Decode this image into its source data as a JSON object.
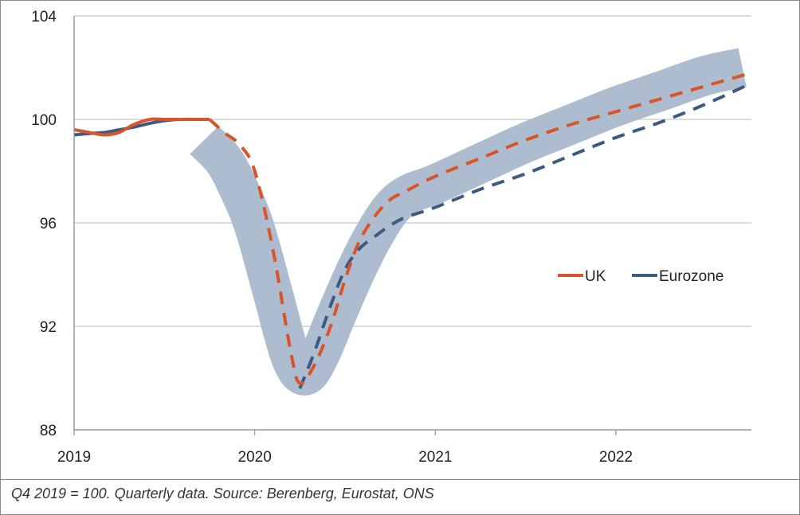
{
  "chart_data": {
    "type": "line",
    "x_ticks": [
      "2019",
      "2020",
      "2021",
      "2022"
    ],
    "y_ticks": [
      88,
      92,
      96,
      100,
      104
    ],
    "ylim": [
      88,
      104
    ],
    "xlim": [
      2019.0,
      2022.75
    ],
    "grid": true,
    "legend_position": "right-middle",
    "series": [
      {
        "name": "UK",
        "color": "#d9532b",
        "actual": {
          "x": [
            2019.0,
            2019.08,
            2019.17,
            2019.25,
            2019.33,
            2019.42,
            2019.5,
            2019.58,
            2019.67,
            2019.75
          ],
          "y": [
            99.6,
            99.5,
            99.4,
            99.5,
            99.8,
            100.0,
            100.0,
            100.0,
            100.0,
            100.0
          ]
        },
        "forecast": {
          "x": [
            2019.75,
            2019.83,
            2019.92,
            2020.0,
            2020.1,
            2020.2,
            2020.25,
            2020.33,
            2020.42,
            2020.5,
            2020.58,
            2020.67,
            2020.75,
            2020.83,
            2021.0,
            2021.25,
            2021.5,
            2021.75,
            2022.0,
            2022.25,
            2022.5,
            2022.75
          ],
          "y": [
            100.0,
            99.5,
            99.0,
            98.0,
            95.0,
            91.0,
            89.8,
            90.5,
            92.0,
            93.8,
            95.3,
            96.3,
            96.9,
            97.2,
            97.8,
            98.5,
            99.2,
            99.8,
            100.3,
            100.8,
            101.3,
            101.8
          ]
        }
      },
      {
        "name": "Eurozone",
        "color": "#3d5a80",
        "actual": {
          "x": [
            2019.0,
            2019.08,
            2019.17,
            2019.25,
            2019.33,
            2019.42,
            2019.5,
            2019.58,
            2019.67,
            2019.75
          ],
          "y": [
            99.4,
            99.45,
            99.5,
            99.6,
            99.7,
            99.85,
            99.95,
            100.0,
            100.0,
            100.0
          ]
        },
        "forecast": {
          "x": [
            2020.25,
            2020.33,
            2020.42,
            2020.5,
            2020.58,
            2020.67,
            2020.75,
            2020.83,
            2021.0,
            2021.25,
            2021.5,
            2021.75,
            2022.0,
            2022.25,
            2022.5,
            2022.75
          ],
          "y": [
            89.6,
            91.0,
            92.8,
            94.2,
            95.0,
            95.5,
            95.9,
            96.2,
            96.6,
            97.3,
            97.9,
            98.6,
            99.3,
            99.9,
            100.6,
            101.4
          ]
        }
      }
    ],
    "uncertainty_band": {
      "color": "#a9b9cc",
      "x": [
        2019.72,
        2019.83,
        2019.92,
        2020.0,
        2020.1,
        2020.2,
        2020.28,
        2020.36,
        2020.45,
        2020.55,
        2020.65,
        2020.75,
        2020.85,
        2021.0,
        2021.25,
        2021.5,
        2021.75,
        2022.0,
        2022.25,
        2022.5,
        2022.7
      ],
      "y": [
        99.2,
        98.4,
        97.2,
        95.8,
        93.3,
        90.8,
        90.1,
        90.9,
        92.4,
        94.0,
        95.4,
        96.5,
        97.1,
        97.5,
        98.3,
        99.1,
        99.8,
        100.5,
        101.1,
        101.7,
        102.0
      ]
    }
  },
  "legend": {
    "uk": "UK",
    "eurozone": "Eurozone"
  },
  "footnote": "Q4 2019 = 100. Quarterly data. Source: Berenberg, Eurostat, ONS"
}
